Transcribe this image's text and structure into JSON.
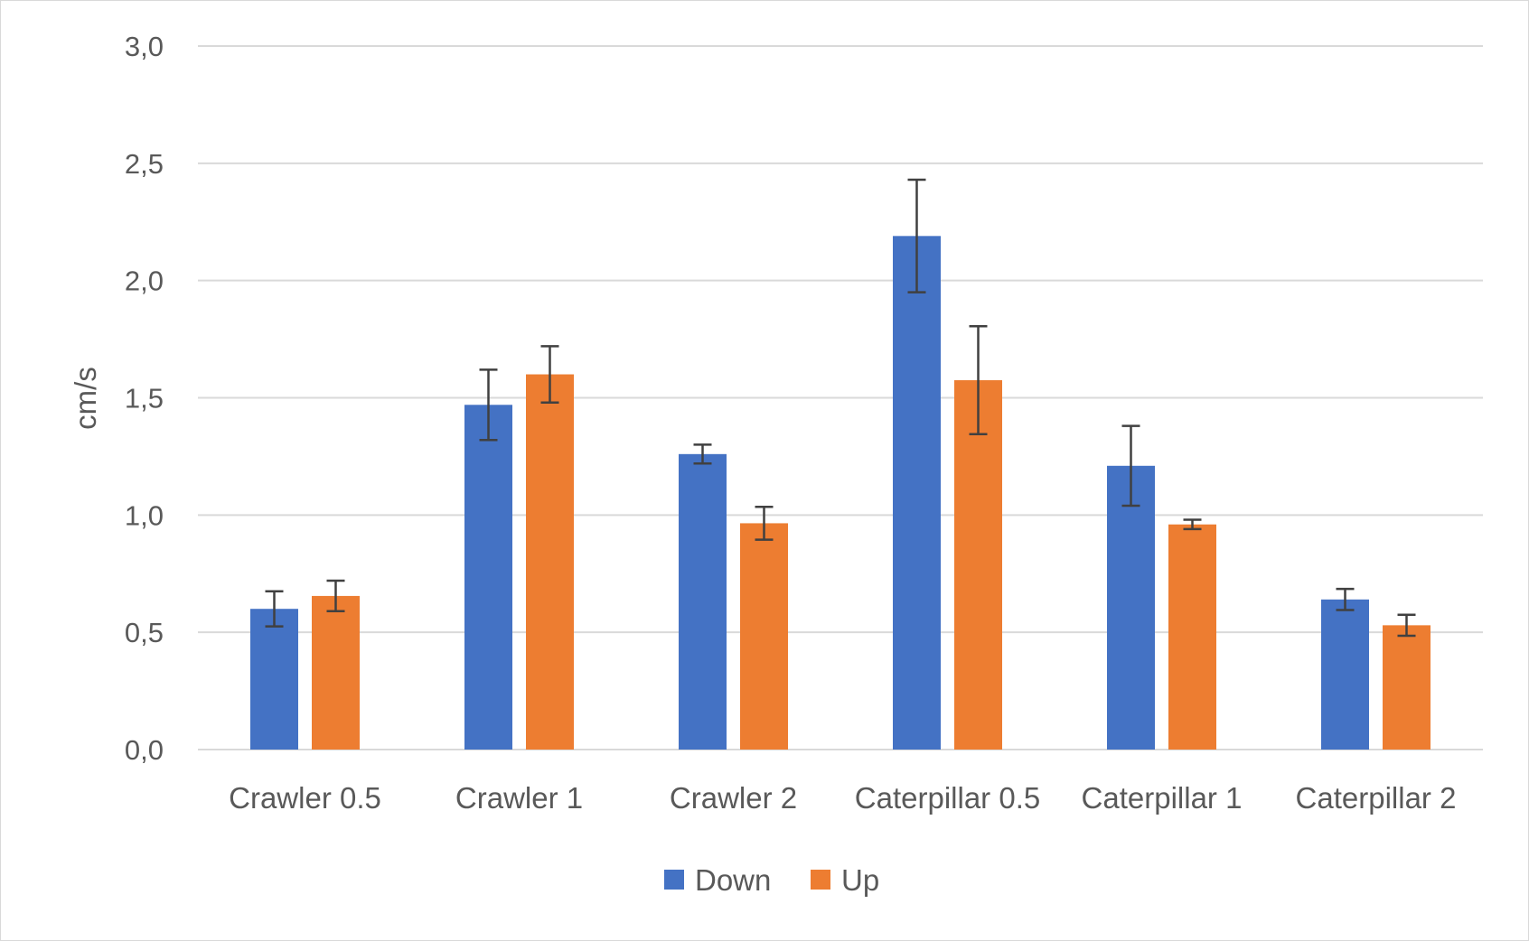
{
  "chart_data": {
    "type": "bar",
    "ylabel": "cm/s",
    "ylim": [
      0,
      3
    ],
    "yticks": [
      "0,0",
      "0,5",
      "1,0",
      "1,5",
      "2,0",
      "2,5",
      "3,0"
    ],
    "grid": true,
    "legend_position": "bottom",
    "categories": [
      "Crawler 0.5",
      "Crawler 1",
      "Crawler 2",
      "Caterpillar 0.5",
      "Caterpillar 1",
      "Caterpillar 2"
    ],
    "series": [
      {
        "name": "Down",
        "color": "#4472c4",
        "values": [
          0.6,
          1.47,
          1.26,
          2.19,
          1.21,
          0.64
        ],
        "error": [
          0.075,
          0.15,
          0.04,
          0.24,
          0.17,
          0.045
        ]
      },
      {
        "name": "Up",
        "color": "#ed7d31",
        "values": [
          0.655,
          1.6,
          0.965,
          1.575,
          0.96,
          0.53
        ],
        "error": [
          0.065,
          0.12,
          0.07,
          0.23,
          0.02,
          0.045
        ]
      }
    ]
  }
}
